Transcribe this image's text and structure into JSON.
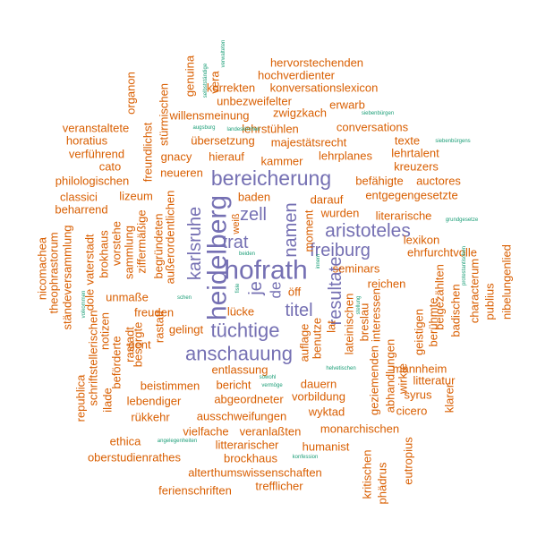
{
  "palette": {
    "purple": "#7570b3",
    "orange": "#d95f02",
    "teal": "#1b9e77"
  },
  "words": [
    {
      "text": "hofrath",
      "color": "purple"
    },
    {
      "text": "heidelberg",
      "color": "purple"
    },
    {
      "text": "bereicherung",
      "color": "purple"
    },
    {
      "text": "anschauung",
      "color": "purple"
    },
    {
      "text": "tüchtige",
      "color": "purple"
    },
    {
      "text": "aristoteles",
      "color": "purple"
    },
    {
      "text": "freiburg",
      "color": "purple"
    },
    {
      "text": "resultate",
      "color": "purple"
    },
    {
      "text": "titel",
      "color": "purple"
    },
    {
      "text": "karlsruhe",
      "color": "purple"
    },
    {
      "text": "namen",
      "color": "purple"
    },
    {
      "text": "trat",
      "color": "purple"
    },
    {
      "text": "zell",
      "color": "purple"
    },
    {
      "text": "je",
      "color": "purple"
    },
    {
      "text": "de",
      "color": "purple"
    },
    {
      "text": "hervorstechenden",
      "color": "orange"
    },
    {
      "text": "hochverdienter",
      "color": "orange"
    },
    {
      "text": "konversationslexicon",
      "color": "orange"
    },
    {
      "text": "korrekten",
      "color": "orange"
    },
    {
      "text": "unbezweifelter",
      "color": "orange"
    },
    {
      "text": "erwarb",
      "color": "orange"
    },
    {
      "text": "willensmeinung",
      "color": "orange"
    },
    {
      "text": "zwigzkach",
      "color": "orange"
    },
    {
      "text": "veranstaltete",
      "color": "orange"
    },
    {
      "text": "lehrstühlen",
      "color": "orange"
    },
    {
      "text": "conversations",
      "color": "orange"
    },
    {
      "text": "horatius",
      "color": "orange"
    },
    {
      "text": "übersetzung",
      "color": "orange"
    },
    {
      "text": "majestätsrecht",
      "color": "orange"
    },
    {
      "text": "texte",
      "color": "orange"
    },
    {
      "text": "verführend",
      "color": "orange"
    },
    {
      "text": "gnacy",
      "color": "orange"
    },
    {
      "text": "hierauf",
      "color": "orange"
    },
    {
      "text": "lehrplanes",
      "color": "orange"
    },
    {
      "text": "lehrtalent",
      "color": "orange"
    },
    {
      "text": "cato",
      "color": "orange"
    },
    {
      "text": "kammer",
      "color": "orange"
    },
    {
      "text": "kreuzers",
      "color": "orange"
    },
    {
      "text": "philologischen",
      "color": "orange"
    },
    {
      "text": "neueren",
      "color": "orange"
    },
    {
      "text": "befähigte",
      "color": "orange"
    },
    {
      "text": "auctores",
      "color": "orange"
    },
    {
      "text": "classici",
      "color": "orange"
    },
    {
      "text": "lizeum",
      "color": "orange"
    },
    {
      "text": "baden",
      "color": "orange"
    },
    {
      "text": "darauf",
      "color": "orange"
    },
    {
      "text": "entgegengesetzte",
      "color": "orange"
    },
    {
      "text": "beharrend",
      "color": "orange"
    },
    {
      "text": "wurden",
      "color": "orange"
    },
    {
      "text": "literarische",
      "color": "orange"
    },
    {
      "text": "lexikon",
      "color": "orange"
    },
    {
      "text": "ehrfurchtvolle",
      "color": "orange"
    },
    {
      "text": "seminars",
      "color": "orange"
    },
    {
      "text": "reichen",
      "color": "orange"
    },
    {
      "text": "unmaße",
      "color": "orange"
    },
    {
      "text": "öff",
      "color": "orange"
    },
    {
      "text": "freuden",
      "color": "orange"
    },
    {
      "text": "lücke",
      "color": "orange"
    },
    {
      "text": "gelingt",
      "color": "orange"
    },
    {
      "text": "gent",
      "color": "orange"
    },
    {
      "text": "entlassung",
      "color": "orange"
    },
    {
      "text": "mannheim",
      "color": "orange"
    },
    {
      "text": "beistimmen",
      "color": "orange"
    },
    {
      "text": "bericht",
      "color": "orange"
    },
    {
      "text": "dauern",
      "color": "orange"
    },
    {
      "text": "litteratur",
      "color": "orange"
    },
    {
      "text": "lebendiger",
      "color": "orange"
    },
    {
      "text": "abgeordneter",
      "color": "orange"
    },
    {
      "text": "vorbildung",
      "color": "orange"
    },
    {
      "text": "syrus",
      "color": "orange"
    },
    {
      "text": "rükkehr",
      "color": "orange"
    },
    {
      "text": "ausschweifungen",
      "color": "orange"
    },
    {
      "text": "wyktad",
      "color": "orange"
    },
    {
      "text": "cicero",
      "color": "orange"
    },
    {
      "text": "vielfache",
      "color": "orange"
    },
    {
      "text": "veranlaßten",
      "color": "orange"
    },
    {
      "text": "monarchischen",
      "color": "orange"
    },
    {
      "text": "ethica",
      "color": "orange"
    },
    {
      "text": "litterarischer",
      "color": "orange"
    },
    {
      "text": "humanist",
      "color": "orange"
    },
    {
      "text": "oberstudienrathes",
      "color": "orange"
    },
    {
      "text": "brockhaus",
      "color": "orange"
    },
    {
      "text": "alterthumswissenschaften",
      "color": "orange"
    },
    {
      "text": "ferienschriften",
      "color": "orange"
    },
    {
      "text": "trefflicher",
      "color": "orange"
    },
    {
      "text": "organon",
      "color": "orange"
    },
    {
      "text": "stürmischen",
      "color": "orange"
    },
    {
      "text": "genuina",
      "color": "orange"
    },
    {
      "text": "vera",
      "color": "orange"
    },
    {
      "text": "freundlichst",
      "color": "orange"
    },
    {
      "text": "außerordentlichen",
      "color": "orange"
    },
    {
      "text": "ziffermäßige",
      "color": "orange"
    },
    {
      "text": "begründeten",
      "color": "orange"
    },
    {
      "text": "rastatt",
      "color": "orange"
    },
    {
      "text": "vorstehe",
      "color": "orange"
    },
    {
      "text": "sammlung",
      "color": "orange"
    },
    {
      "text": "besorgte",
      "color": "orange"
    },
    {
      "text": "nicomachea",
      "color": "orange"
    },
    {
      "text": "theophrastorum",
      "color": "orange"
    },
    {
      "text": "ständeversammlung",
      "color": "orange"
    },
    {
      "text": "vaterstadt",
      "color": "orange"
    },
    {
      "text": "schriftstellerischen",
      "color": "orange"
    },
    {
      "text": "brokhaus",
      "color": "orange"
    },
    {
      "text": "notizen",
      "color": "orange"
    },
    {
      "text": "beförderte",
      "color": "orange"
    },
    {
      "text": "rastadt",
      "color": "orange"
    },
    {
      "text": "ilade",
      "color": "orange"
    },
    {
      "text": "dole",
      "color": "orange"
    },
    {
      "text": "republica",
      "color": "orange"
    },
    {
      "text": "moment",
      "color": "orange"
    },
    {
      "text": "auflage",
      "color": "orange"
    },
    {
      "text": "benutze",
      "color": "orange"
    },
    {
      "text": "lat",
      "color": "orange"
    },
    {
      "text": "lateinischen",
      "color": "orange"
    },
    {
      "text": "breslau",
      "color": "orange"
    },
    {
      "text": "geziemenden",
      "color": "orange"
    },
    {
      "text": "interessen",
      "color": "orange"
    },
    {
      "text": "abhandlungen",
      "color": "orange"
    },
    {
      "text": "wirkte",
      "color": "orange"
    },
    {
      "text": "geistigen",
      "color": "orange"
    },
    {
      "text": "berühmte",
      "color": "orange"
    },
    {
      "text": "beigezählten",
      "color": "orange"
    },
    {
      "text": "badischen",
      "color": "orange"
    },
    {
      "text": "characterum",
      "color": "orange"
    },
    {
      "text": "publius",
      "color": "orange"
    },
    {
      "text": "nibelungenlied",
      "color": "orange"
    },
    {
      "text": "klarer",
      "color": "orange"
    },
    {
      "text": "kritischen",
      "color": "orange"
    },
    {
      "text": "phädrus",
      "color": "orange"
    },
    {
      "text": "eutropius",
      "color": "orange"
    },
    {
      "text": "weiß",
      "color": "orange"
    },
    {
      "text": "selbstständige",
      "color": "teal"
    },
    {
      "text": "verwalteten",
      "color": "teal"
    },
    {
      "text": "siebenbürgen",
      "color": "teal"
    },
    {
      "text": "augsburg",
      "color": "teal"
    },
    {
      "text": "landeskirchen",
      "color": "teal"
    },
    {
      "text": "siebenbürgens",
      "color": "teal"
    },
    {
      "text": "grundgesetze",
      "color": "teal"
    },
    {
      "text": "protestantischen",
      "color": "teal"
    },
    {
      "text": "volkommen",
      "color": "teal"
    },
    {
      "text": "schen",
      "color": "teal"
    },
    {
      "text": "fisle",
      "color": "teal"
    },
    {
      "text": "beiden",
      "color": "teal"
    },
    {
      "text": "innern",
      "color": "teal"
    },
    {
      "text": "stellung",
      "color": "teal"
    },
    {
      "text": "helvetischen",
      "color": "teal"
    },
    {
      "text": "sowohl",
      "color": "teal"
    },
    {
      "text": "vermöge",
      "color": "teal"
    },
    {
      "text": "angelegenheiten",
      "color": "teal"
    },
    {
      "text": "konfession",
      "color": "teal"
    }
  ]
}
